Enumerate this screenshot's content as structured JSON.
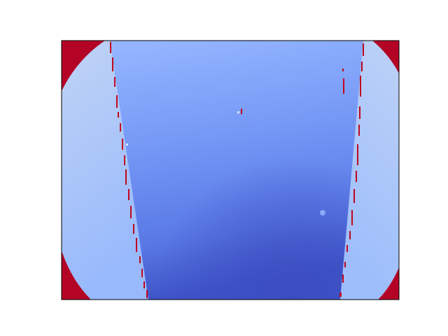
{
  "image": {
    "kind": "depth-map-heatmap",
    "colormap": "coolwarm",
    "axes_visible": false,
    "frame": "black-border",
    "colors": {
      "invalid_region": "#b40426",
      "near_light": "#c5d6f2",
      "mid": "#8fb1fe",
      "far_dark": "#3b4cc0",
      "background": "#ffffff"
    },
    "regions": [
      "corner-mask-top-left",
      "corner-mask-top-right",
      "corner-mask-bottom-left",
      "corner-mask-bottom-right",
      "left-side-region",
      "central-channel",
      "right-side-region",
      "left-edge-artifacts",
      "right-edge-artifacts"
    ]
  }
}
